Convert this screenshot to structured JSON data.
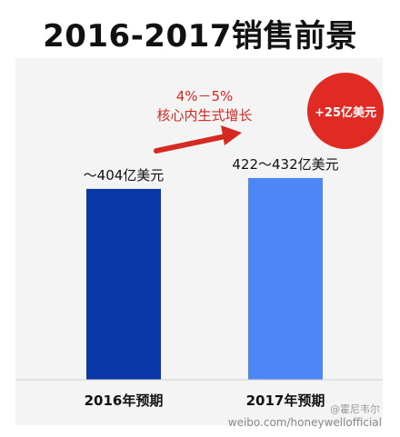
{
  "title": "2016-2017销售前景",
  "annotation": {
    "growth_line1": "4%－5%",
    "growth_line2": "核心内生式增长",
    "badge": "+25亿美元"
  },
  "watermark": {
    "handle": "@霍尼韦尔",
    "url": "weibo.com/honeywellofficial"
  },
  "colors": {
    "bar_2016": "#0a37a8",
    "bar_2017": "#4f86f6",
    "accent_red": "#d42a22"
  },
  "chart_data": {
    "type": "bar",
    "categories": [
      "2016年预期",
      "2017年预期"
    ],
    "values": [
      404,
      427
    ],
    "value_labels": [
      "～404亿美元",
      "422～432亿美元"
    ],
    "ylim": [
      0,
      440
    ],
    "grid": false,
    "legend": "none"
  }
}
